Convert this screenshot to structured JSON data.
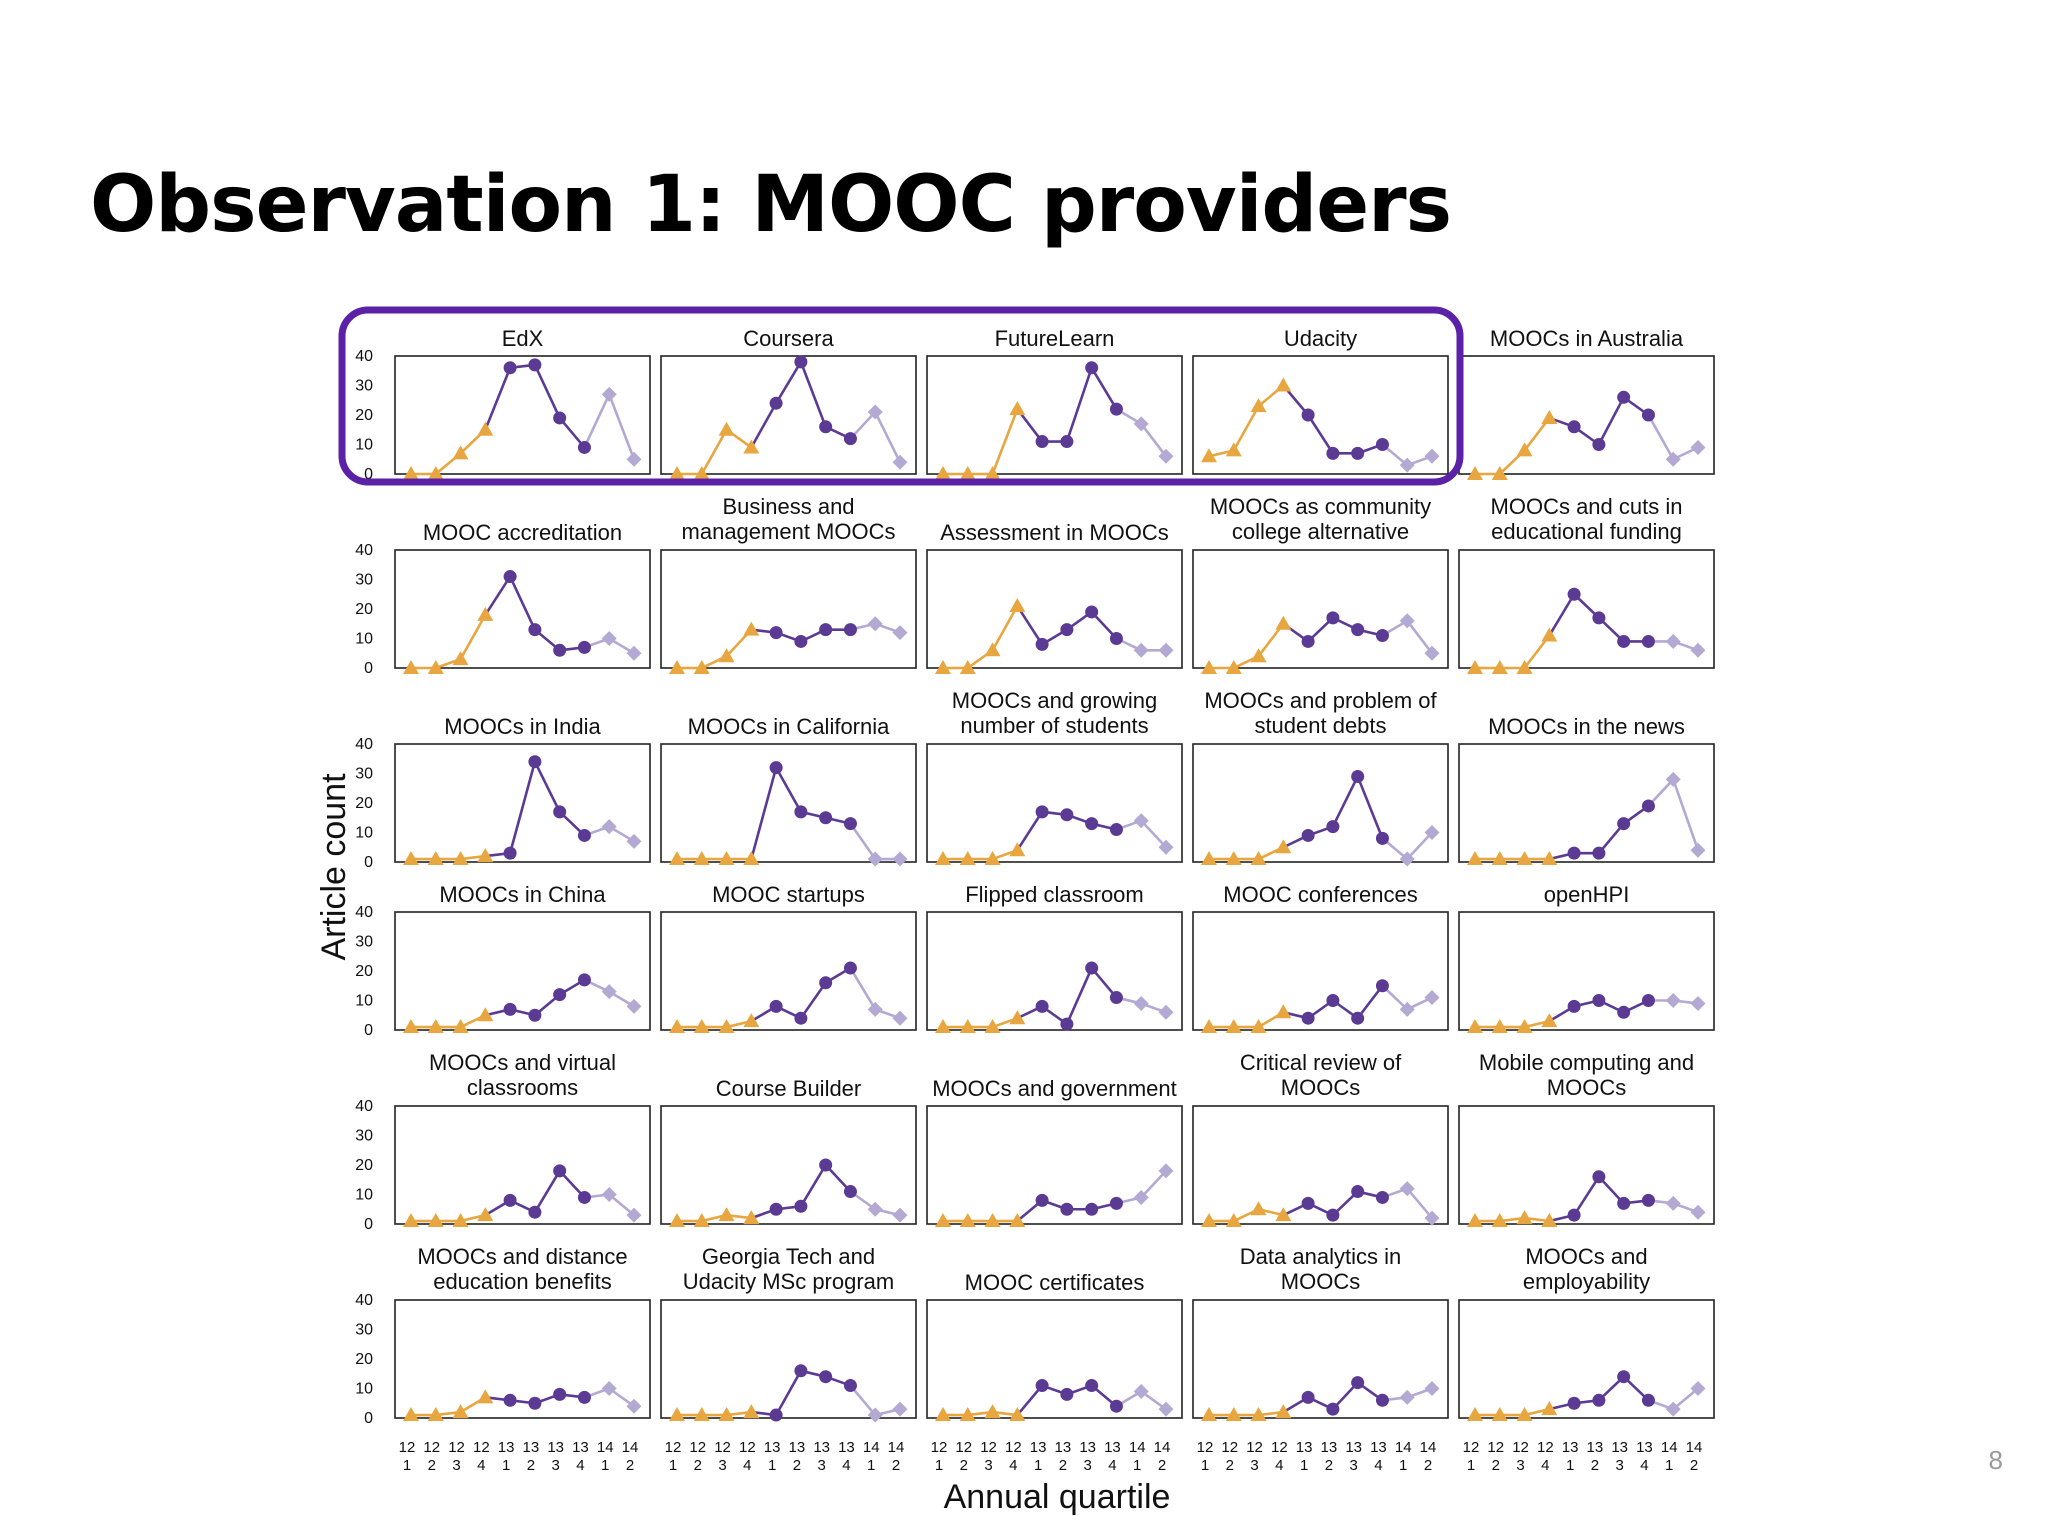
{
  "slide": {
    "title": "Observation 1: MOOC providers",
    "page_number": "8"
  },
  "colors": {
    "early": "#E8A640",
    "mid": "#5B3A94",
    "late": "#B3A9D3",
    "highlight": "#5B22A8"
  },
  "chart_data": {
    "type": "line",
    "layout": "small-multiples",
    "ylabel": "Article count",
    "xlabel": "Annual quartile",
    "ylim": [
      0,
      40
    ],
    "y_ticks": [
      0,
      10,
      20,
      30,
      40
    ],
    "x": [
      "12 1",
      "12 2",
      "12 3",
      "12 4",
      "13 1",
      "13 2",
      "13 3",
      "13 4",
      "14 1",
      "14 2"
    ],
    "x_tick_year": [
      "12",
      "12",
      "12",
      "12",
      "13",
      "13",
      "13",
      "13",
      "14",
      "14"
    ],
    "x_tick_quarter": [
      "1",
      "2",
      "3",
      "4",
      "1",
      "2",
      "3",
      "4",
      "1",
      "2"
    ],
    "phase_markers": {
      "early": "triangle",
      "mid": "circle",
      "late": "diamond"
    },
    "phases": [
      "early",
      "early",
      "early",
      "early",
      "mid",
      "mid",
      "mid",
      "mid",
      "late",
      "late"
    ],
    "highlighted_panels": [
      "EdX",
      "Coursera",
      "FutureLearn",
      "Udacity"
    ],
    "panels": [
      {
        "title": [
          "EdX"
        ],
        "values": [
          0,
          0,
          7,
          15,
          36,
          37,
          19,
          9,
          27,
          5
        ]
      },
      {
        "title": [
          "Coursera"
        ],
        "values": [
          0,
          0,
          15,
          9,
          24,
          38,
          16,
          12,
          21,
          4
        ]
      },
      {
        "title": [
          "FutureLearn"
        ],
        "values": [
          0,
          0,
          0,
          22,
          11,
          11,
          36,
          22,
          17,
          6
        ]
      },
      {
        "title": [
          "Udacity"
        ],
        "values": [
          6,
          8,
          23,
          30,
          20,
          7,
          7,
          10,
          3,
          6
        ]
      },
      {
        "title": [
          "MOOCs in Australia"
        ],
        "values": [
          0,
          0,
          8,
          19,
          16,
          10,
          26,
          20,
          5,
          9
        ]
      },
      {
        "title": [
          "MOOC accreditation"
        ],
        "values": [
          0,
          0,
          3,
          18,
          31,
          13,
          6,
          7,
          10,
          5
        ]
      },
      {
        "title": [
          "Business and",
          "management MOOCs"
        ],
        "values": [
          0,
          0,
          4,
          13,
          12,
          9,
          13,
          13,
          15,
          12
        ]
      },
      {
        "title": [
          "Assessment in MOOCs"
        ],
        "values": [
          0,
          0,
          6,
          21,
          8,
          13,
          19,
          10,
          6,
          6
        ]
      },
      {
        "title": [
          "MOOCs as community",
          "college alternative"
        ],
        "values": [
          0,
          0,
          4,
          15,
          9,
          17,
          13,
          11,
          16,
          5
        ]
      },
      {
        "title": [
          "MOOCs and cuts in",
          "educational funding"
        ],
        "values": [
          0,
          0,
          0,
          11,
          25,
          17,
          9,
          9,
          9,
          6
        ]
      },
      {
        "title": [
          "MOOCs in India"
        ],
        "values": [
          1,
          1,
          1,
          2,
          3,
          34,
          17,
          9,
          12,
          7
        ]
      },
      {
        "title": [
          "MOOCs in California"
        ],
        "values": [
          1,
          1,
          1,
          1,
          32,
          17,
          15,
          13,
          1,
          1
        ]
      },
      {
        "title": [
          "MOOCs and growing",
          "number of students"
        ],
        "values": [
          1,
          1,
          1,
          4,
          17,
          16,
          13,
          11,
          14,
          5
        ]
      },
      {
        "title": [
          "MOOCs and problem of",
          "student debts"
        ],
        "values": [
          1,
          1,
          1,
          5,
          9,
          12,
          29,
          8,
          1,
          10
        ]
      },
      {
        "title": [
          "MOOCs in the news"
        ],
        "values": [
          1,
          1,
          1,
          1,
          3,
          3,
          13,
          19,
          28,
          4
        ]
      },
      {
        "title": [
          "MOOCs in China"
        ],
        "values": [
          1,
          1,
          1,
          5,
          7,
          5,
          12,
          17,
          13,
          8
        ]
      },
      {
        "title": [
          "MOOC startups"
        ],
        "values": [
          1,
          1,
          1,
          3,
          8,
          4,
          16,
          21,
          7,
          4
        ]
      },
      {
        "title": [
          "Flipped classroom"
        ],
        "values": [
          1,
          1,
          1,
          4,
          8,
          2,
          21,
          11,
          9,
          6
        ]
      },
      {
        "title": [
          "MOOC conferences"
        ],
        "values": [
          1,
          1,
          1,
          6,
          4,
          10,
          4,
          15,
          7,
          11
        ]
      },
      {
        "title": [
          "openHPI"
        ],
        "values": [
          1,
          1,
          1,
          3,
          8,
          10,
          6,
          10,
          10,
          9
        ]
      },
      {
        "title": [
          "MOOCs and virtual",
          "classrooms"
        ],
        "values": [
          1,
          1,
          1,
          3,
          8,
          4,
          18,
          9,
          10,
          3
        ]
      },
      {
        "title": [
          "Course Builder"
        ],
        "values": [
          1,
          1,
          3,
          2,
          5,
          6,
          20,
          11,
          5,
          3
        ]
      },
      {
        "title": [
          "MOOCs and government"
        ],
        "values": [
          1,
          1,
          1,
          1,
          8,
          5,
          5,
          7,
          9,
          18
        ]
      },
      {
        "title": [
          "Critical review of",
          "MOOCs"
        ],
        "values": [
          1,
          1,
          5,
          3,
          7,
          3,
          11,
          9,
          12,
          2
        ]
      },
      {
        "title": [
          "Mobile computing and",
          "MOOCs"
        ],
        "values": [
          1,
          1,
          2,
          1,
          3,
          16,
          7,
          8,
          7,
          4
        ]
      },
      {
        "title": [
          "MOOCs and distance",
          "education benefits"
        ],
        "values": [
          1,
          1,
          2,
          7,
          6,
          5,
          8,
          7,
          10,
          4
        ]
      },
      {
        "title": [
          "Georgia Tech and",
          "Udacity MSc program"
        ],
        "values": [
          1,
          1,
          1,
          2,
          1,
          16,
          14,
          11,
          1,
          3
        ]
      },
      {
        "title": [
          "MOOC certificates"
        ],
        "values": [
          1,
          1,
          2,
          1,
          11,
          8,
          11,
          4,
          9,
          3
        ]
      },
      {
        "title": [
          "Data analytics in",
          "MOOCs"
        ],
        "values": [
          1,
          1,
          1,
          2,
          7,
          3,
          12,
          6,
          7,
          10
        ]
      },
      {
        "title": [
          "MOOCs and",
          "employability"
        ],
        "values": [
          1,
          1,
          1,
          3,
          5,
          6,
          14,
          6,
          3,
          10
        ]
      }
    ]
  }
}
